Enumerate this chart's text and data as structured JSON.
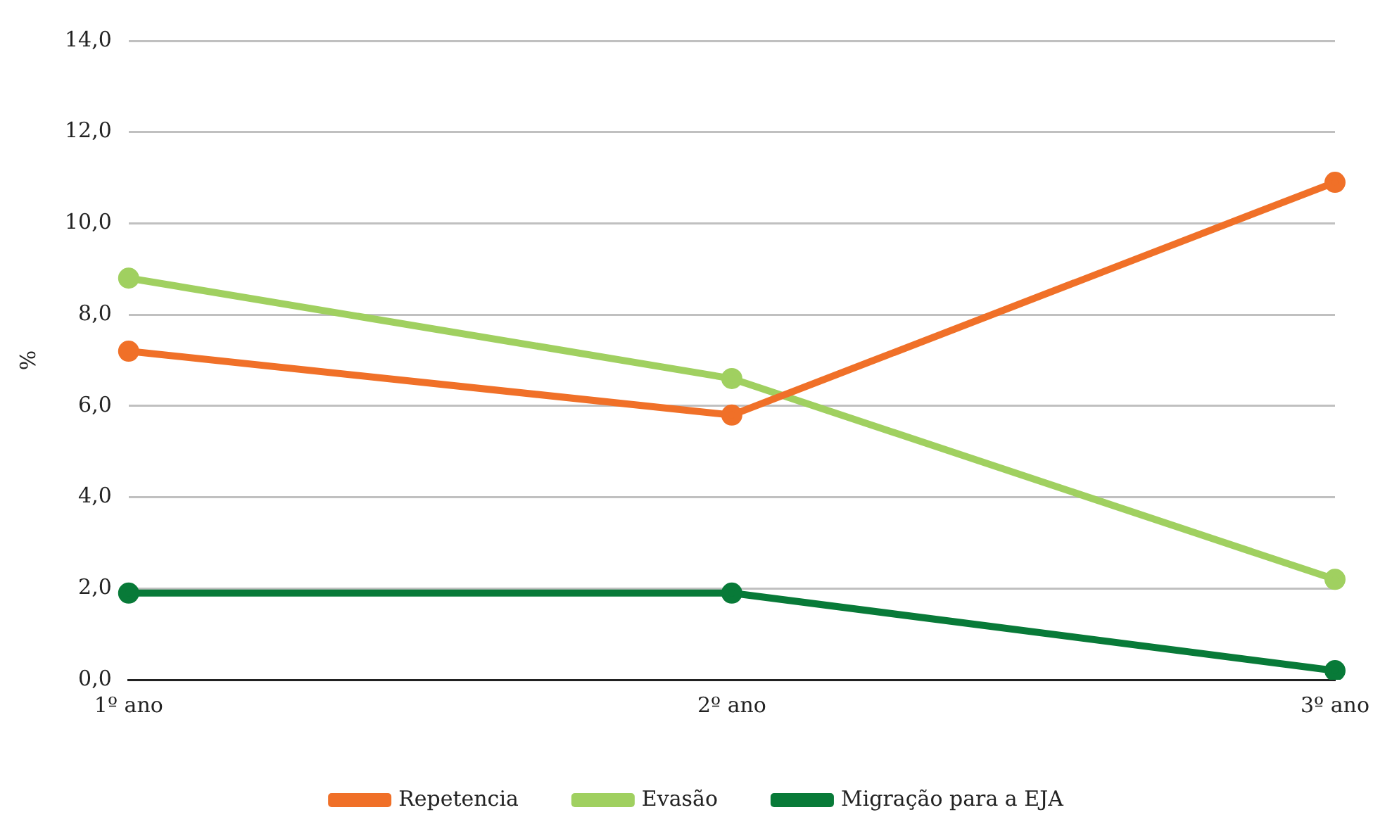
{
  "chart_data": {
    "type": "line",
    "ylabel": "%",
    "categories": [
      "1º ano",
      "2º ano",
      "3º ano"
    ],
    "series": [
      {
        "name": "Repetencia",
        "color": "#f07028",
        "values": [
          7.2,
          5.8,
          10.9
        ]
      },
      {
        "name": "Evasão",
        "color": "#a0d060",
        "values": [
          8.8,
          6.6,
          2.2
        ]
      },
      {
        "name": "Migração para a EJA",
        "color": "#087a38",
        "values": [
          1.9,
          1.9,
          0.2
        ]
      }
    ],
    "ylim": [
      0,
      14
    ],
    "yticks": [
      {
        "value": 0,
        "label": "0,0"
      },
      {
        "value": 2,
        "label": "2,0"
      },
      {
        "value": 4,
        "label": "4,0"
      },
      {
        "value": 6,
        "label": "6,0"
      },
      {
        "value": 8,
        "label": "8,0"
      },
      {
        "value": 10,
        "label": "10,0"
      },
      {
        "value": 12,
        "label": "12,0"
      },
      {
        "value": 14,
        "label": "14,0"
      }
    ],
    "grid": "y",
    "legend": "bottom",
    "marker": "circle",
    "line_style": "solid"
  }
}
